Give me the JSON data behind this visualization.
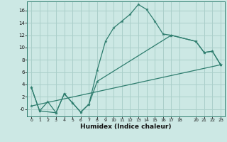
{
  "xlabel": "Humidex (Indice chaleur)",
  "background_color": "#cce8e4",
  "grid_color": "#aacfca",
  "line_color": "#2e7d6e",
  "xlim": [
    -0.5,
    23.5
  ],
  "ylim": [
    -1.2,
    17.5
  ],
  "xticks": [
    0,
    1,
    2,
    3,
    4,
    5,
    6,
    7,
    8,
    9,
    10,
    11,
    12,
    13,
    14,
    15,
    16,
    17,
    18,
    20,
    21,
    22,
    23
  ],
  "yticks": [
    0,
    2,
    4,
    6,
    8,
    10,
    12,
    14,
    16
  ],
  "ytick_labels": [
    "-0",
    "2",
    "4",
    "6",
    "8",
    "10",
    "12",
    "14",
    "16"
  ],
  "series1_x": [
    0,
    1,
    2,
    3,
    4,
    5,
    6,
    7,
    8,
    9,
    10,
    11,
    12,
    13,
    14,
    15,
    16,
    17,
    20,
    21,
    22,
    23
  ],
  "series1_y": [
    3.5,
    -0.3,
    1.2,
    -0.6,
    2.5,
    1.0,
    -0.5,
    0.8,
    6.3,
    11.0,
    13.2,
    14.3,
    15.4,
    17.0,
    16.2,
    14.3,
    12.2,
    12.0,
    11.0,
    9.2,
    9.4,
    7.2
  ],
  "series2_x": [
    0,
    1,
    3,
    4,
    5,
    6,
    7,
    8,
    17,
    20,
    21,
    22,
    23
  ],
  "series2_y": [
    3.5,
    -0.3,
    -0.6,
    2.5,
    1.0,
    -0.5,
    0.8,
    4.5,
    12.0,
    11.0,
    9.2,
    9.4,
    7.2
  ],
  "series3_x": [
    0,
    23
  ],
  "series3_y": [
    0.5,
    7.2
  ]
}
